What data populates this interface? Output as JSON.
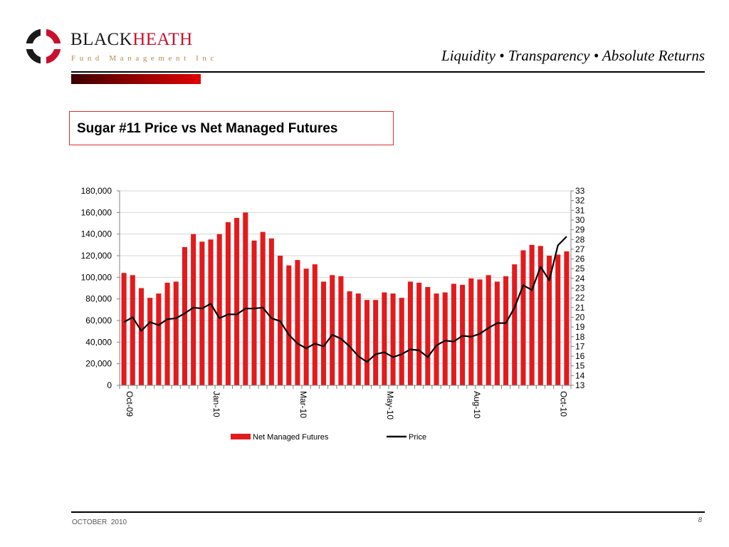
{
  "brand": {
    "name_part1": "BLACK",
    "name_part2": "HEATH",
    "subtitle": "Fund Management Inc",
    "colors": {
      "black": "#1a1a1a",
      "red": "#c8102e",
      "gold": "#b58a52"
    }
  },
  "header": {
    "tagline": "Liquidity  • Transparency  • Absolute Returns"
  },
  "footer": {
    "date": "OCTOBER  2010",
    "page_number": "8"
  },
  "chart_data": {
    "type": "bar",
    "title": "Sugar #11 Price vs Net Managed Futures",
    "xlabel": "",
    "ylabel": "",
    "y2label": "",
    "grid": true,
    "legend_position": "bottom",
    "x_tick_labels": [
      "Oct-09",
      "Jan-10",
      "Mar-10",
      "May-10",
      "Aug-10",
      "Oct-10"
    ],
    "x_tick_indices": [
      0,
      10,
      20,
      30,
      40,
      50
    ],
    "ylim": [
      0,
      180000
    ],
    "y_ticks": [
      0,
      20000,
      40000,
      60000,
      80000,
      100000,
      120000,
      140000,
      160000,
      180000
    ],
    "y_tick_labels": [
      "0",
      "20,000",
      "40,000",
      "60,000",
      "80,000",
      "100,000",
      "120,000",
      "140,000",
      "160,000",
      "180,000"
    ],
    "y2lim": [
      13,
      33
    ],
    "y2_ticks": [
      13,
      14,
      15,
      16,
      17,
      18,
      19,
      20,
      21,
      22,
      23,
      24,
      25,
      26,
      27,
      28,
      29,
      30,
      31,
      32,
      33
    ],
    "y2_tick_labels": [
      "13",
      "14",
      "15",
      "16",
      "17",
      "18",
      "19",
      "20",
      "21",
      "22",
      "23",
      "24",
      "25",
      "26",
      "27",
      "28",
      "29",
      "30",
      "31",
      "32",
      "33"
    ],
    "series": [
      {
        "name": "Net Managed Futures",
        "type": "bar",
        "axis": "left",
        "color": "#e31a1c",
        "values": [
          104000,
          102000,
          90000,
          81000,
          85000,
          95000,
          96000,
          128000,
          140000,
          133000,
          135000,
          140000,
          151000,
          155000,
          160000,
          134000,
          142000,
          136000,
          120000,
          111000,
          116000,
          108000,
          112000,
          96000,
          102000,
          101000,
          87000,
          85000,
          79000,
          79000,
          86000,
          85000,
          81000,
          96000,
          95000,
          91000,
          85000,
          86000,
          94000,
          93000,
          99000,
          98000,
          102000,
          96000,
          101000,
          112000,
          125000,
          130000,
          129000,
          120000,
          121000,
          124000
        ]
      },
      {
        "name": "Price",
        "type": "line",
        "axis": "right",
        "color": "#000000",
        "values": [
          19.5,
          20.0,
          18.6,
          19.5,
          19.2,
          19.8,
          19.9,
          20.4,
          21.0,
          20.9,
          21.4,
          19.9,
          20.3,
          20.3,
          20.9,
          20.9,
          21.0,
          19.9,
          19.6,
          18.2,
          17.3,
          16.8,
          17.3,
          17.0,
          18.2,
          17.8,
          17.0,
          16.0,
          15.4,
          16.2,
          16.4,
          15.9,
          16.2,
          16.7,
          16.6,
          15.9,
          17.1,
          17.6,
          17.5,
          18.1,
          18.0,
          18.3,
          18.9,
          19.4,
          19.4,
          21.0,
          23.3,
          22.8,
          25.2,
          23.8,
          27.4,
          28.3
        ]
      }
    ]
  }
}
